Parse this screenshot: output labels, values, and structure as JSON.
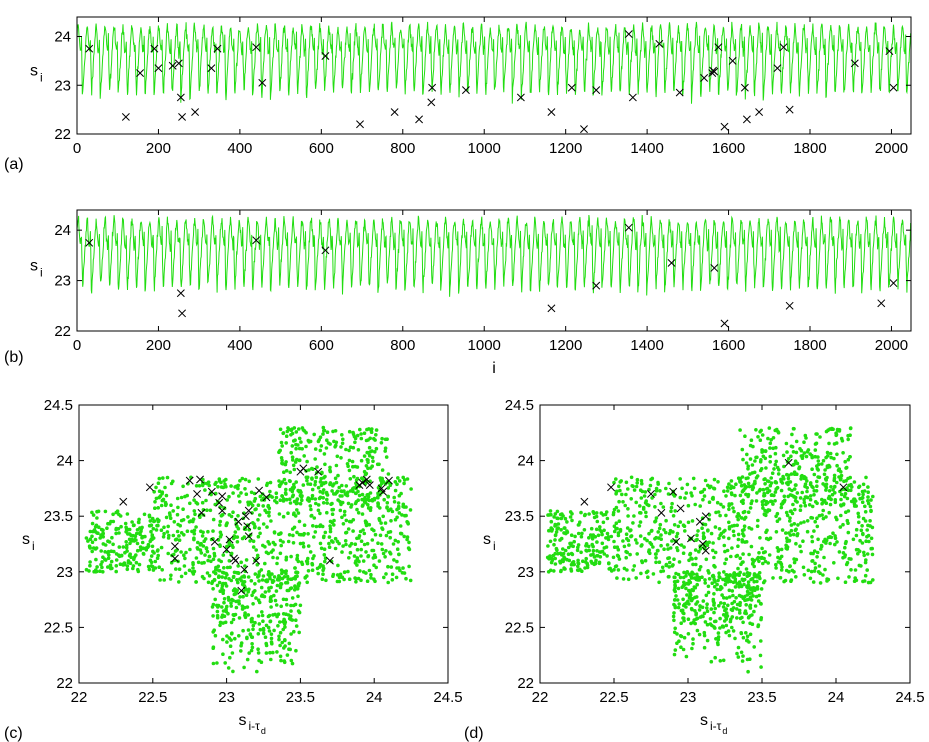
{
  "colors": {
    "trace": "#22dd11",
    "points": "#22dd11",
    "marker": "#000000",
    "axes": "#000000"
  },
  "panel_labels": [
    "(a)",
    "(b)",
    "(c)",
    "(d)"
  ],
  "chart_data": [
    {
      "type": "line",
      "panel": "(a)",
      "xlim": [
        0,
        2048
      ],
      "ylim": [
        22,
        24.4
      ],
      "xticks": [
        0,
        200,
        400,
        600,
        800,
        1000,
        1200,
        1400,
        1600,
        1800,
        2000
      ],
      "yticks": [
        22,
        23,
        24
      ],
      "xlabel": "",
      "ylabel": "s",
      "ylabel_sub": "i",
      "series": [
        {
          "kind": "line",
          "n": 2048,
          "mean": 23.4,
          "min": 22.0,
          "max": 24.3,
          "peak_spacing": 22
        }
      ],
      "markers": [
        [
          30,
          23.75
        ],
        [
          120,
          22.35
        ],
        [
          155,
          23.25
        ],
        [
          190,
          23.75
        ],
        [
          200,
          23.35
        ],
        [
          235,
          23.4
        ],
        [
          250,
          23.45
        ],
        [
          255,
          22.75
        ],
        [
          258,
          22.35
        ],
        [
          290,
          22.45
        ],
        [
          330,
          23.35
        ],
        [
          345,
          23.75
        ],
        [
          440,
          23.78
        ],
        [
          455,
          23.05
        ],
        [
          610,
          23.6
        ],
        [
          695,
          22.2
        ],
        [
          780,
          22.45
        ],
        [
          840,
          22.3
        ],
        [
          870,
          22.65
        ],
        [
          872,
          22.95
        ],
        [
          955,
          22.9
        ],
        [
          1090,
          22.75
        ],
        [
          1165,
          22.45
        ],
        [
          1215,
          22.95
        ],
        [
          1245,
          22.1
        ],
        [
          1275,
          22.9
        ],
        [
          1355,
          24.05
        ],
        [
          1365,
          22.75
        ],
        [
          1430,
          23.85
        ],
        [
          1480,
          22.85
        ],
        [
          1540,
          23.15
        ],
        [
          1560,
          23.25
        ],
        [
          1562,
          23.3
        ],
        [
          1565,
          23.28
        ],
        [
          1575,
          23.78
        ],
        [
          1590,
          22.15
        ],
        [
          1610,
          23.5
        ],
        [
          1640,
          22.95
        ],
        [
          1645,
          22.3
        ],
        [
          1675,
          22.45
        ],
        [
          1720,
          23.35
        ],
        [
          1735,
          23.78
        ],
        [
          1750,
          22.5
        ],
        [
          1910,
          23.45
        ],
        [
          1995,
          23.7
        ],
        [
          2005,
          22.95
        ]
      ]
    },
    {
      "type": "line",
      "panel": "(b)",
      "xlim": [
        0,
        2048
      ],
      "ylim": [
        22,
        24.4
      ],
      "xticks": [
        0,
        200,
        400,
        600,
        800,
        1000,
        1200,
        1400,
        1600,
        1800,
        2000
      ],
      "yticks": [
        22,
        23,
        24
      ],
      "xlabel": "i",
      "ylabel": "s",
      "ylabel_sub": "i",
      "series": [
        {
          "kind": "line",
          "n": 2048,
          "mean": 23.4,
          "min": 22.0,
          "max": 24.3,
          "peak_spacing": 22
        }
      ],
      "markers": [
        [
          30,
          23.75
        ],
        [
          255,
          22.75
        ],
        [
          258,
          22.35
        ],
        [
          440,
          23.8
        ],
        [
          610,
          23.6
        ],
        [
          1165,
          22.45
        ],
        [
          1275,
          22.9
        ],
        [
          1355,
          24.05
        ],
        [
          1460,
          23.35
        ],
        [
          1565,
          23.25
        ],
        [
          1590,
          22.15
        ],
        [
          1750,
          22.5
        ],
        [
          1975,
          22.55
        ],
        [
          2005,
          22.95
        ]
      ]
    },
    {
      "type": "scatter",
      "panel": "(c)",
      "xlim": [
        22,
        24.5
      ],
      "ylim": [
        22,
        24.5
      ],
      "xticks": [
        22,
        22.5,
        23,
        23.5,
        24,
        24.5
      ],
      "yticks": [
        22,
        22.5,
        23,
        23.5,
        24,
        24.5
      ],
      "xlabel": "s",
      "xlabel_sub": "i-τ",
      "xlabel_subsub": "d",
      "ylabel": "s",
      "ylabel_sub": "i",
      "cloud": {
        "n": 1600,
        "body": [
          22.05,
          24.25,
          22.9,
          23.85
        ],
        "tail": [
          22.9,
          23.5,
          22.05,
          23.0
        ],
        "cap": [
          23.35,
          24.1,
          23.6,
          24.3
        ]
      },
      "markers": [
        [
          22.3,
          23.63
        ],
        [
          22.48,
          23.76
        ],
        [
          22.65,
          23.23
        ],
        [
          22.65,
          23.12
        ],
        [
          22.75,
          23.82
        ],
        [
          22.8,
          23.7
        ],
        [
          22.82,
          23.83
        ],
        [
          22.83,
          23.53
        ],
        [
          22.9,
          23.72
        ],
        [
          22.92,
          23.27
        ],
        [
          22.95,
          23.62
        ],
        [
          22.97,
          23.55
        ],
        [
          22.97,
          23.68
        ],
        [
          23.0,
          23.2
        ],
        [
          23.02,
          23.29
        ],
        [
          23.05,
          23.12
        ],
        [
          23.06,
          23.1
        ],
        [
          23.08,
          23.45
        ],
        [
          23.1,
          22.83
        ],
        [
          23.12,
          23.02
        ],
        [
          23.13,
          23.5
        ],
        [
          23.14,
          23.41
        ],
        [
          23.15,
          23.55
        ],
        [
          23.15,
          23.32
        ],
        [
          23.2,
          23.1
        ],
        [
          23.22,
          23.73
        ],
        [
          23.27,
          23.67
        ],
        [
          23.5,
          23.9
        ],
        [
          23.52,
          23.93
        ],
        [
          23.62,
          23.9
        ],
        [
          23.7,
          23.1
        ],
        [
          23.9,
          23.78
        ],
        [
          23.92,
          23.8
        ],
        [
          23.95,
          23.83
        ],
        [
          23.97,
          23.78
        ],
        [
          24.05,
          23.75
        ],
        [
          24.1,
          23.82
        ],
        [
          24.06,
          23.72
        ]
      ]
    },
    {
      "type": "scatter",
      "panel": "(d)",
      "xlim": [
        22,
        24.5
      ],
      "ylim": [
        22,
        24.5
      ],
      "xticks": [
        22,
        22.5,
        23,
        23.5,
        24,
        24.5
      ],
      "yticks": [
        22,
        22.5,
        23,
        23.5,
        24,
        24.5
      ],
      "xlabel": "s",
      "xlabel_sub": "i-τ",
      "xlabel_subsub": "d",
      "ylabel": "s",
      "ylabel_sub": "i",
      "cloud": {
        "n": 1600,
        "body": [
          22.05,
          24.25,
          22.9,
          23.85
        ],
        "tail": [
          22.9,
          23.5,
          22.05,
          23.0
        ],
        "cap": [
          23.35,
          24.1,
          23.6,
          24.3
        ]
      },
      "markers": [
        [
          22.3,
          23.63
        ],
        [
          22.48,
          23.76
        ],
        [
          22.75,
          23.7
        ],
        [
          22.82,
          23.53
        ],
        [
          22.9,
          23.72
        ],
        [
          22.92,
          23.27
        ],
        [
          22.95,
          23.57
        ],
        [
          23.02,
          23.3
        ],
        [
          23.08,
          23.45
        ],
        [
          23.1,
          23.25
        ],
        [
          23.12,
          23.19
        ],
        [
          23.12,
          23.5
        ],
        [
          23.68,
          23.98
        ],
        [
          24.05,
          23.76
        ]
      ]
    }
  ]
}
